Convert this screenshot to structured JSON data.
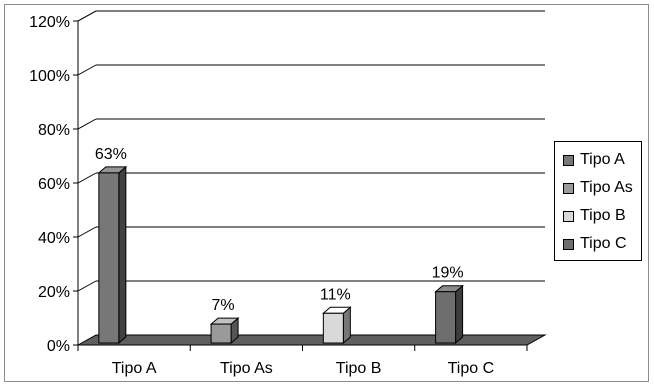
{
  "chart_data": {
    "type": "bar",
    "style": "3d-column",
    "categories": [
      "Tipo A",
      "Tipo As",
      "Tipo B",
      "Tipo C"
    ],
    "values": [
      63,
      7,
      11,
      19
    ],
    "value_labels": [
      "63%",
      "7%",
      "11%",
      "19%"
    ],
    "colors": [
      "#777777",
      "#9a9a9a",
      "#d9d9d9",
      "#6e6e6e"
    ],
    "ylim": [
      0,
      120
    ],
    "y_ticks": [
      "0%",
      "20%",
      "40%",
      "60%",
      "80%",
      "100%",
      "120%"
    ],
    "grid": true,
    "legend": {
      "position": "right",
      "entries": [
        "Tipo A",
        "Tipo As",
        "Tipo B",
        "Tipo C"
      ]
    },
    "title": "",
    "xlabel": "",
    "ylabel": ""
  }
}
